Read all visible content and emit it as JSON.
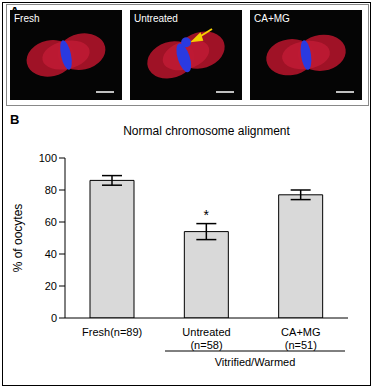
{
  "panel_a": {
    "label": "A",
    "images": [
      "Fresh",
      "Untreated",
      "CA+MG"
    ]
  },
  "chart_data": {
    "panel_label": "B",
    "type": "bar",
    "title": "Normal chromosome alignment",
    "ylabel": "% of oocytes",
    "categories": [
      "Fresh(n=89)",
      "Untreated\n(n=58)",
      "CA+MG\n(n=51)"
    ],
    "values": [
      86,
      54,
      77
    ],
    "errors": [
      3,
      5,
      3
    ],
    "annotations": [
      null,
      "*",
      null
    ],
    "group_label": "Vitrified/Warmed",
    "color": "#d9d9d9",
    "ylim": [
      0,
      100
    ],
    "yticks": [
      0,
      20,
      40,
      60,
      80,
      100
    ],
    "grid": false
  }
}
